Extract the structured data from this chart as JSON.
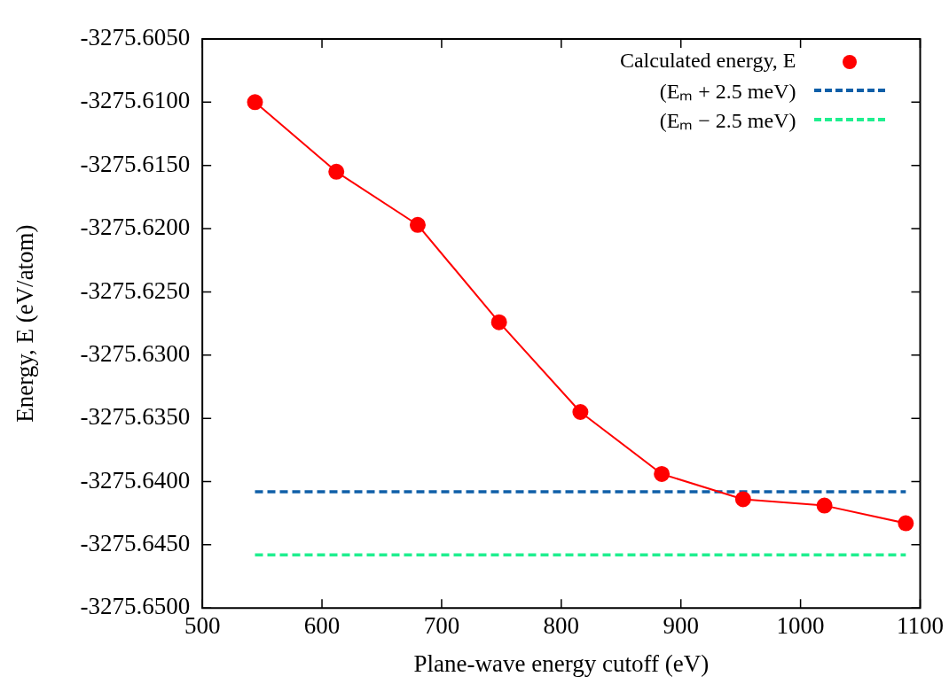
{
  "chart_data": {
    "type": "line",
    "xlabel": "Plane-wave energy cutoff (eV)",
    "ylabel": "Energy, E (eV/atom)",
    "xlim": [
      500,
      1100
    ],
    "xticks": [
      500,
      600,
      700,
      800,
      900,
      1000,
      1100
    ],
    "ylim": [
      -3275.65,
      -3275.605
    ],
    "yticks": [
      {
        "value": -3275.65,
        "label": "-3275.6500"
      },
      {
        "value": -3275.645,
        "label": "-3275.6450"
      },
      {
        "value": -3275.64,
        "label": "-3275.6400"
      },
      {
        "value": -3275.635,
        "label": "-3275.6350"
      },
      {
        "value": -3275.63,
        "label": "-3275.6300"
      },
      {
        "value": -3275.625,
        "label": "-3275.6250"
      },
      {
        "value": -3275.62,
        "label": "-3275.6200"
      },
      {
        "value": -3275.615,
        "label": "-3275.6150"
      },
      {
        "value": -3275.61,
        "label": "-3275.6100"
      },
      {
        "value": -3275.605,
        "label": "-3275.6050"
      }
    ],
    "grid": false,
    "legend": "top right",
    "series": [
      {
        "name": "Calculated energy, E",
        "color": "#ff0000",
        "marker": "circle",
        "line_style": "solid",
        "x": [
          544,
          612,
          680,
          748,
          816,
          884,
          952,
          1020,
          1088
        ],
        "values": [
          -3275.61,
          -3275.6155,
          -3275.6197,
          -3275.6274,
          -3275.6345,
          -3275.6394,
          -3275.6414,
          -3275.6419,
          -3275.6433
        ]
      },
      {
        "name": "(Eₘ + 2.5 meV)",
        "color": "#0f5fa8",
        "marker": "none",
        "line_style": "dashed",
        "x": [
          544,
          1088
        ],
        "values": [
          -3275.6408,
          -3275.6408
        ]
      },
      {
        "name": "(Eₘ − 2.5 meV)",
        "color": "#1fef8f",
        "marker": "none",
        "line_style": "dashed",
        "x": [
          544,
          1088
        ],
        "values": [
          -3275.6458,
          -3275.6458
        ]
      }
    ]
  }
}
